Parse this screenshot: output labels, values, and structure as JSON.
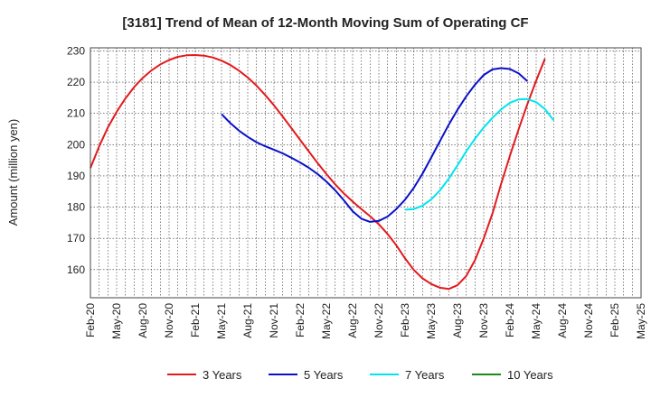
{
  "chart_data": {
    "type": "line",
    "title": "[3181]  Trend of Mean of 12-Month Moving Sum of Operating CF",
    "xlabel": "",
    "ylabel": "Amount (million yen)",
    "ylim": [
      151,
      231
    ],
    "yticks": [
      160,
      170,
      180,
      190,
      200,
      210,
      220,
      230
    ],
    "xticks": [
      "Feb-20",
      "May-20",
      "Aug-20",
      "Nov-20",
      "Feb-21",
      "May-21",
      "Aug-21",
      "Nov-21",
      "Feb-22",
      "May-22",
      "Aug-22",
      "Nov-22",
      "Feb-23",
      "May-23",
      "Aug-23",
      "Nov-23",
      "Feb-24",
      "May-24",
      "Aug-24",
      "Nov-24",
      "Feb-25",
      "May-25"
    ],
    "grid": true,
    "legend_position": "bottom",
    "series": [
      {
        "name": "3 Years",
        "color": "#e31a1c",
        "start_index": 0,
        "values": [
          192.5,
          199.5,
          205.5,
          210.5,
          214.8,
          218.4,
          221.4,
          223.8,
          225.7,
          227.1,
          228.1,
          228.6,
          228.7,
          228.5,
          227.9,
          226.9,
          225.5,
          223.7,
          221.5,
          218.9,
          215.9,
          212.6,
          209.0,
          205.3,
          201.5,
          197.8,
          194.1,
          190.6,
          187.3,
          184.4,
          181.8,
          179.4,
          177.1,
          174.5,
          171.4,
          167.8,
          163.6,
          159.9,
          157.2,
          155.4,
          154.2,
          153.8,
          155.0,
          158.0,
          163.0,
          170.0,
          178.0,
          187.5,
          196.5,
          205.0,
          213.0,
          220.5,
          227.5
        ]
      },
      {
        "name": "5 Years",
        "color": "#0a10c8",
        "start_index": 15,
        "values": [
          209.8,
          206.9,
          204.5,
          202.5,
          200.8,
          199.5,
          198.4,
          197.2,
          195.8,
          194.3,
          192.6,
          190.6,
          188.2,
          185.4,
          182.2,
          178.7,
          176.3,
          175.3,
          175.6,
          177.0,
          179.4,
          182.4,
          186.2,
          190.7,
          195.9,
          201.2,
          206.4,
          211.2,
          215.5,
          219.2,
          222.3,
          224.1,
          224.5,
          224.2,
          222.8,
          220.3
        ]
      },
      {
        "name": "7 Years",
        "color": "#00e5ee",
        "start_index": 36,
        "values": [
          179.2,
          179.4,
          180.5,
          182.5,
          185.4,
          189.1,
          193.4,
          197.9,
          201.9,
          205.5,
          208.6,
          211.3,
          213.4,
          214.5,
          214.6,
          213.6,
          211.4,
          207.8
        ]
      },
      {
        "name": "10 Years",
        "color": "#1a8a1a",
        "start_index": 0,
        "values": []
      }
    ]
  }
}
